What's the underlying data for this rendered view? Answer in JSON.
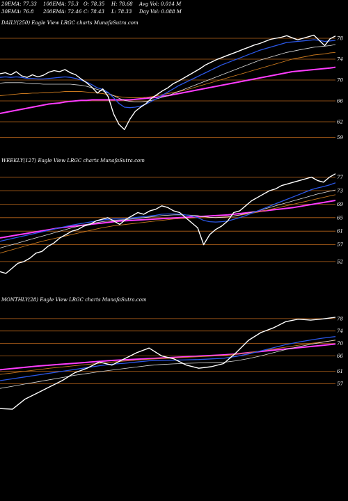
{
  "header": {
    "row1": [
      "20EMA: 77.33",
      "100EMA: 75.3",
      "O: 78.35",
      "H: 78.68",
      "Avg Vol: 0.014  M"
    ],
    "row2": [
      "30EMA: 76.8",
      "200EMA: 72.46",
      "C: 78.43",
      "L: 78.33",
      "Day Vol: 0.088  M"
    ]
  },
  "colors": {
    "background": "#000000",
    "price": "#ffffff",
    "level_lines": "#b8651b",
    "ema_blue": "#2b57e8",
    "ema_magenta": "#ff3cff",
    "ema_orange": "#c8781e",
    "ema_white": "#dddddd"
  },
  "chart_data": [
    {
      "type": "line",
      "title": "DAILY(250) Eagle  View  LRGC charts MunafaSutra.com",
      "levels": [
        78,
        74,
        70,
        66,
        62,
        59
      ],
      "ylim": [
        58,
        80
      ],
      "series": [
        {
          "role": "price",
          "values": [
            71.2,
            71.4,
            71.0,
            71.6,
            70.8,
            70.5,
            71.0,
            70.6,
            70.9,
            71.5,
            71.8,
            71.6,
            72.0,
            71.4,
            71.0,
            70.2,
            69.5,
            68.6,
            67.5,
            68.3,
            66.8,
            63.5,
            61.5,
            60.5,
            62.5,
            64.0,
            64.8,
            65.5,
            66.5,
            67.2,
            67.9,
            68.5,
            69.3,
            69.8,
            70.4,
            71.0,
            71.6,
            72.2,
            72.9,
            73.4,
            73.9,
            74.3,
            74.7,
            75.1,
            75.5,
            75.9,
            76.3,
            76.7,
            77.0,
            77.4,
            77.8,
            78.0,
            78.2,
            78.5,
            78.1,
            77.7,
            78.0,
            78.3,
            78.6,
            77.6,
            76.6,
            77.9,
            78.43
          ]
        },
        {
          "role": "ema-fast",
          "values": [
            70.5,
            70.6,
            70.5,
            70.6,
            70.5,
            70.3,
            70.3,
            70.2,
            70.2,
            70.3,
            70.4,
            70.5,
            70.6,
            70.5,
            70.3,
            70.0,
            69.6,
            69.1,
            68.5,
            68.2,
            67.6,
            66.6,
            65.5,
            64.8,
            64.7,
            64.8,
            65.0,
            65.4,
            65.9,
            66.5,
            67.1,
            67.7,
            68.3,
            68.9,
            69.4,
            69.9,
            70.4,
            70.9,
            71.4,
            71.9,
            72.4,
            72.9,
            73.3,
            73.7,
            74.1,
            74.5,
            74.9,
            75.3,
            75.7,
            76.0,
            76.3,
            76.6,
            76.9,
            77.2,
            77.3,
            77.4,
            77.5,
            77.6,
            77.7,
            77.6,
            77.4,
            77.5,
            77.6
          ]
        },
        {
          "role": "ema-slow",
          "values": [
            69.4,
            69.5,
            69.5,
            69.5,
            69.5,
            69.4,
            69.3,
            69.3,
            69.2,
            69.2,
            69.2,
            69.2,
            69.2,
            69.2,
            69.1,
            69.0,
            68.8,
            68.5,
            68.2,
            67.9,
            67.5,
            67.0,
            66.5,
            66.1,
            65.9,
            65.8,
            65.8,
            65.9,
            66.1,
            66.4,
            66.7,
            67.0,
            67.4,
            67.8,
            68.2,
            68.6,
            69.0,
            69.4,
            69.8,
            70.2,
            70.6,
            71.0,
            71.4,
            71.8,
            72.2,
            72.6,
            73.0,
            73.4,
            73.8,
            74.1,
            74.4,
            74.7,
            75.0,
            75.3,
            75.5,
            75.7,
            75.9,
            76.1,
            76.3,
            76.4,
            76.5,
            76.6,
            76.8
          ]
        },
        {
          "role": "ema-long",
          "values": [
            67.0,
            67.1,
            67.2,
            67.3,
            67.4,
            67.4,
            67.5,
            67.5,
            67.6,
            67.6,
            67.7,
            67.7,
            67.8,
            67.8,
            67.8,
            67.8,
            67.7,
            67.6,
            67.5,
            67.4,
            67.2,
            67.0,
            66.8,
            66.7,
            66.6,
            66.6,
            66.6,
            66.7,
            66.8,
            67.0,
            67.2,
            67.4,
            67.6,
            67.8,
            68.0,
            68.3,
            68.6,
            68.9,
            69.2,
            69.5,
            69.8,
            70.1,
            70.4,
            70.7,
            71.0,
            71.3,
            71.6,
            71.9,
            72.2,
            72.5,
            72.8,
            73.1,
            73.4,
            73.7,
            74.0,
            74.2,
            74.4,
            74.6,
            74.8,
            74.9,
            75.0,
            75.2,
            75.3
          ]
        },
        {
          "role": "ema-200",
          "values": [
            63.6,
            63.8,
            64.0,
            64.2,
            64.4,
            64.6,
            64.8,
            65.0,
            65.2,
            65.4,
            65.5,
            65.6,
            65.8,
            65.9,
            66.0,
            66.1,
            66.1,
            66.2,
            66.2,
            66.2,
            66.2,
            66.2,
            66.2,
            66.2,
            66.2,
            66.3,
            66.4,
            66.5,
            66.6,
            66.7,
            66.9,
            67.0,
            67.2,
            67.4,
            67.6,
            67.8,
            68.0,
            68.2,
            68.4,
            68.6,
            68.8,
            69.0,
            69.2,
            69.4,
            69.6,
            69.8,
            70.0,
            70.2,
            70.4,
            70.6,
            70.8,
            71.0,
            71.2,
            71.4,
            71.6,
            71.7,
            71.8,
            71.9,
            72.0,
            72.1,
            72.2,
            72.3,
            72.46
          ]
        }
      ]
    },
    {
      "type": "line",
      "title": "WEEKLY(127) Eagle  View  LRGC charts MunafaSutra.com",
      "levels": [
        77,
        73,
        69,
        65,
        61,
        57,
        52
      ],
      "ylim": [
        46,
        80
      ],
      "series": [
        {
          "role": "price",
          "values": [
            49.0,
            48.5,
            50.0,
            51.5,
            52.0,
            53.0,
            54.5,
            55.0,
            56.5,
            57.5,
            59.0,
            60.0,
            61.0,
            61.5,
            62.5,
            63.0,
            64.0,
            64.5,
            65.0,
            64.0,
            63.0,
            64.5,
            65.5,
            66.5,
            66.0,
            67.0,
            67.5,
            68.5,
            68.0,
            67.0,
            66.5,
            65.0,
            63.5,
            62.0,
            57.0,
            60.0,
            61.5,
            62.5,
            64.0,
            66.5,
            67.0,
            68.5,
            70.0,
            71.0,
            72.0,
            73.0,
            73.5,
            74.5,
            75.0,
            75.5,
            76.0,
            76.5,
            77.0,
            76.0,
            75.5,
            77.0,
            78.0
          ]
        },
        {
          "role": "ema-fast",
          "values": [
            58.0,
            58.4,
            58.8,
            59.2,
            59.6,
            60.0,
            60.4,
            60.8,
            61.2,
            61.6,
            62.0,
            62.4,
            62.8,
            63.1,
            63.4,
            63.7,
            64.0,
            64.3,
            64.5,
            64.6,
            64.6,
            64.7,
            64.9,
            65.1,
            65.3,
            65.5,
            65.7,
            66.0,
            66.1,
            66.1,
            66.0,
            65.8,
            65.5,
            65.0,
            64.2,
            63.8,
            63.7,
            63.8,
            64.0,
            64.5,
            65.0,
            65.6,
            66.3,
            67.0,
            67.7,
            68.4,
            69.1,
            69.8,
            70.5,
            71.2,
            71.9,
            72.6,
            73.3,
            73.8,
            74.2,
            74.7,
            75.3
          ]
        },
        {
          "role": "ema-slow",
          "values": [
            56.0,
            56.5,
            57.0,
            57.5,
            58.0,
            58.5,
            59.0,
            59.5,
            60.0,
            60.5,
            61.0,
            61.5,
            62.0,
            62.4,
            62.8,
            63.2,
            63.5,
            63.8,
            64.0,
            64.2,
            64.3,
            64.4,
            64.6,
            64.8,
            65.0,
            65.2,
            65.4,
            65.6,
            65.7,
            65.8,
            65.8,
            65.8,
            65.7,
            65.6,
            65.3,
            65.1,
            65.0,
            65.1,
            65.2,
            65.5,
            65.8,
            66.2,
            66.6,
            67.0,
            67.5,
            68.0,
            68.5,
            69.0,
            69.5,
            70.0,
            70.5,
            71.0,
            71.5,
            72.0,
            72.4,
            72.8,
            73.2
          ]
        },
        {
          "role": "ema-long",
          "values": [
            54.5,
            55.0,
            55.5,
            56.0,
            56.5,
            57.0,
            57.5,
            58.0,
            58.4,
            58.8,
            59.2,
            59.6,
            60.0,
            60.4,
            60.8,
            61.2,
            61.6,
            62.0,
            62.3,
            62.6,
            62.8,
            63.0,
            63.2,
            63.4,
            63.6,
            63.8,
            64.0,
            64.2,
            64.4,
            64.6,
            64.7,
            64.8,
            64.9,
            65.0,
            65.0,
            65.0,
            65.1,
            65.2,
            65.3,
            65.5,
            65.7,
            66.0,
            66.3,
            66.6,
            67.0,
            67.4,
            67.8,
            68.2,
            68.6,
            69.0,
            69.4,
            69.8,
            70.2,
            70.6,
            71.0,
            71.4,
            71.8
          ]
        },
        {
          "role": "ema-200",
          "values": [
            59.0,
            59.3,
            59.6,
            59.9,
            60.2,
            60.5,
            60.8,
            61.1,
            61.4,
            61.7,
            62.0,
            62.2,
            62.4,
            62.6,
            62.8,
            63.0,
            63.2,
            63.4,
            63.6,
            63.8,
            64.0,
            64.1,
            64.2,
            64.3,
            64.4,
            64.5,
            64.6,
            64.7,
            64.8,
            64.9,
            65.0,
            65.1,
            65.2,
            65.3,
            65.4,
            65.5,
            65.6,
            65.7,
            65.8,
            66.0,
            66.2,
            66.4,
            66.6,
            66.8,
            67.0,
            67.2,
            67.4,
            67.6,
            67.8,
            68.0,
            68.3,
            68.6,
            68.9,
            69.2,
            69.5,
            69.8,
            70.1
          ]
        }
      ]
    },
    {
      "type": "line",
      "title": "MONTHLY(28) Eagle  View  LRGC charts MunafaSutra.com",
      "levels": [
        78,
        74,
        70,
        66,
        61,
        57
      ],
      "ylim": [
        45,
        82
      ],
      "series": [
        {
          "role": "price",
          "values": [
            49.0,
            48.8,
            52.0,
            54.0,
            56.0,
            58.0,
            60.5,
            62.0,
            64.0,
            63.0,
            65.0,
            67.0,
            68.5,
            66.0,
            65.0,
            63.0,
            62.0,
            62.5,
            63.5,
            67.0,
            71.0,
            73.5,
            75.0,
            77.0,
            77.8,
            77.5,
            77.9,
            78.43
          ]
        },
        {
          "role": "ema-fast",
          "values": [
            58.0,
            58.6,
            59.2,
            59.8,
            60.4,
            61.0,
            61.6,
            62.2,
            62.8,
            63.3,
            63.6,
            64.0,
            64.4,
            64.5,
            64.6,
            64.7,
            64.8,
            65.0,
            65.2,
            65.8,
            66.6,
            67.6,
            68.6,
            69.6,
            70.4,
            71.1,
            71.7,
            72.2
          ]
        },
        {
          "role": "ema-slow",
          "values": [
            55.5,
            56.2,
            56.9,
            57.6,
            58.3,
            59.0,
            59.7,
            60.3,
            60.9,
            61.4,
            61.9,
            62.4,
            62.9,
            63.2,
            63.4,
            63.6,
            63.7,
            63.8,
            63.9,
            64.4,
            65.1,
            66.0,
            67.0,
            68.0,
            68.9,
            69.7,
            70.4,
            71.1
          ]
        },
        {
          "role": "ema-long",
          "values": [
            60.0,
            60.5,
            61.0,
            61.5,
            62.0,
            62.4,
            62.8,
            63.2,
            63.6,
            64.0,
            64.3,
            64.6,
            64.9,
            65.1,
            65.3,
            65.5,
            65.7,
            65.9,
            66.1,
            66.5,
            67.0,
            67.6,
            68.2,
            68.8,
            69.4,
            70.0,
            70.5,
            71.0
          ]
        },
        {
          "role": "ema-200",
          "values": [
            61.5,
            61.9,
            62.3,
            62.7,
            63.0,
            63.3,
            63.6,
            63.9,
            64.2,
            64.5,
            64.7,
            64.9,
            65.1,
            65.3,
            65.5,
            65.7,
            65.9,
            66.1,
            66.3,
            66.6,
            67.0,
            67.4,
            67.8,
            68.2,
            68.6,
            69.0,
            69.4,
            69.8
          ]
        }
      ]
    }
  ]
}
